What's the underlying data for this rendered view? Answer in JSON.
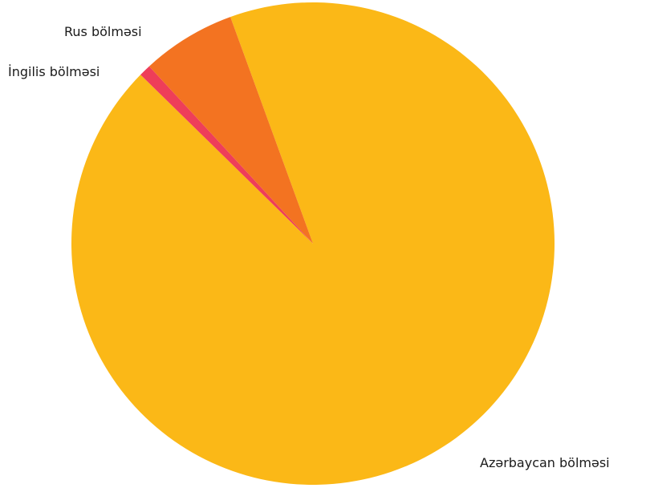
{
  "chart_data": {
    "type": "pie",
    "title": "",
    "categories": [
      "Azərbaycan bölməsi",
      "Rus bölməsi",
      "İngilis bölməsi"
    ],
    "values": [
      92.9,
      6.3,
      0.8
    ],
    "unit": "%",
    "colors": [
      "#FBB817",
      "#F37321",
      "#EE3E59"
    ],
    "start_angle_deg": -20,
    "legend": "none",
    "label_placement": "outside-slices"
  }
}
